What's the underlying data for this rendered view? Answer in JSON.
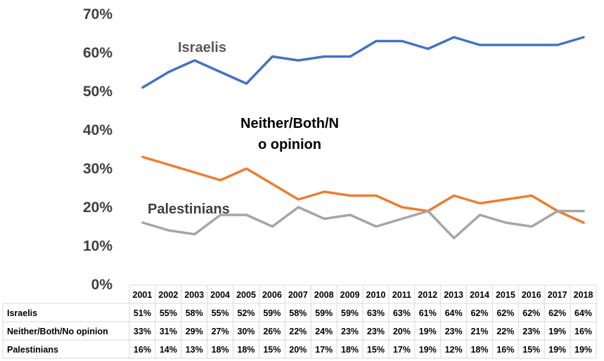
{
  "chart_data": {
    "type": "line",
    "categories": [
      "2001",
      "2002",
      "2003",
      "2004",
      "2005",
      "2006",
      "2007",
      "2008",
      "2009",
      "2010",
      "2011",
      "2012",
      "2013",
      "2014",
      "2015",
      "2016",
      "2017",
      "2018"
    ],
    "ylim": [
      0,
      70
    ],
    "ytick_labels": [
      "0%",
      "10%",
      "20%",
      "30%",
      "40%",
      "50%",
      "60%",
      "70%"
    ],
    "ytick_values": [
      0,
      10,
      20,
      30,
      40,
      50,
      60,
      70
    ],
    "grid": false,
    "series": [
      {
        "name": "Israelis",
        "table_label": "Israelis",
        "chart_label_lines": [
          "Israelis"
        ],
        "color": "#4472C4",
        "label_color": "#595959",
        "values": [
          51,
          55,
          58,
          55,
          52,
          59,
          58,
          59,
          59,
          63,
          63,
          61,
          64,
          62,
          62,
          62,
          62,
          64
        ],
        "cells": [
          "51%",
          "55%",
          "58%",
          "55%",
          "52%",
          "59%",
          "58%",
          "59%",
          "59%",
          "63%",
          "63%",
          "61%",
          "64%",
          "62%",
          "62%",
          "62%",
          "62%",
          "64%"
        ]
      },
      {
        "name": "Neither/Both/No opinion",
        "table_label": "Neither/Both/No opinion",
        "chart_label_lines": [
          "Neither/Both/N",
          "o opinion"
        ],
        "color": "#ED7D31",
        "label_color": "#000000",
        "values": [
          33,
          31,
          29,
          27,
          30,
          26,
          22,
          24,
          23,
          23,
          20,
          19,
          23,
          21,
          22,
          23,
          19,
          16
        ],
        "cells": [
          "33%",
          "31%",
          "29%",
          "27%",
          "30%",
          "26%",
          "22%",
          "24%",
          "23%",
          "23%",
          "20%",
          "19%",
          "23%",
          "21%",
          "22%",
          "23%",
          "19%",
          "16%"
        ]
      },
      {
        "name": "Palestinians",
        "table_label": "Palestinians",
        "chart_label_lines": [
          "Palestinians"
        ],
        "color": "#A5A5A5",
        "label_color": "#404040",
        "values": [
          16,
          14,
          13,
          18,
          18,
          15,
          20,
          17,
          18,
          15,
          17,
          19,
          12,
          18,
          16,
          15,
          19,
          19
        ],
        "cells": [
          "16%",
          "14%",
          "13%",
          "18%",
          "18%",
          "15%",
          "20%",
          "17%",
          "18%",
          "15%",
          "17%",
          "19%",
          "12%",
          "18%",
          "16%",
          "15%",
          "19%",
          "19%"
        ]
      }
    ]
  }
}
